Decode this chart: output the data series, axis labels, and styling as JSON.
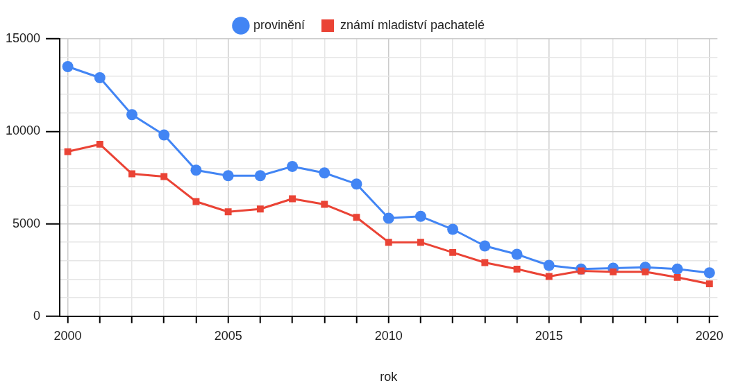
{
  "chart_data": {
    "type": "line",
    "xlabel": "rok",
    "x": [
      2000,
      2001,
      2002,
      2003,
      2004,
      2005,
      2006,
      2007,
      2008,
      2009,
      2010,
      2011,
      2012,
      2013,
      2014,
      2015,
      2016,
      2017,
      2018,
      2019,
      2020
    ],
    "series": [
      {
        "name": "provinění",
        "color": "#4285f4",
        "marker": "circle",
        "values": [
          13500,
          12900,
          10900,
          9800,
          7900,
          7600,
          7600,
          8100,
          7750,
          7150,
          5300,
          5400,
          4700,
          3800,
          3350,
          2750,
          2550,
          2600,
          2650,
          2550,
          2350
        ]
      },
      {
        "name": "známí mladiství pachatelé",
        "color": "#ea4335",
        "marker": "square",
        "values": [
          8900,
          9300,
          7700,
          7550,
          6200,
          5650,
          5800,
          6350,
          6050,
          5350,
          4000,
          4000,
          3450,
          2900,
          2550,
          2150,
          2450,
          2400,
          2400,
          2100,
          1750
        ]
      }
    ],
    "xlim": [
      1999.75,
      2020.25
    ],
    "xticks": [
      2000,
      {
        "value": 2001,
        "label": null
      },
      {
        "value": 2002,
        "label": null
      },
      {
        "value": 2003,
        "label": null
      },
      {
        "value": 2004,
        "label": null
      },
      2005,
      {
        "value": 2006,
        "label": null
      },
      {
        "value": 2007,
        "label": null
      },
      {
        "value": 2008,
        "label": null
      },
      {
        "value": 2009,
        "label": null
      },
      2010,
      {
        "value": 2011,
        "label": null
      },
      {
        "value": 2012,
        "label": null
      },
      {
        "value": 2013,
        "label": null
      },
      {
        "value": 2014,
        "label": null
      },
      2015,
      {
        "value": 2016,
        "label": null
      },
      {
        "value": 2017,
        "label": null
      },
      {
        "value": 2018,
        "label": null
      },
      {
        "value": 2019,
        "label": null
      },
      2020
    ],
    "ylim": [
      0,
      15000
    ],
    "yticks": [
      0,
      {
        "value": 1000,
        "label": null
      },
      {
        "value": 2000,
        "label": null
      },
      {
        "value": 3000,
        "label": null
      },
      {
        "value": 4000,
        "label": null
      },
      5000,
      {
        "value": 6000,
        "label": null
      },
      {
        "value": 7000,
        "label": null
      },
      {
        "value": 8000,
        "label": null
      },
      {
        "value": 9000,
        "label": null
      },
      10000,
      {
        "value": 11000,
        "label": null
      },
      {
        "value": 12000,
        "label": null
      },
      {
        "value": 13000,
        "label": null
      },
      {
        "value": 14000,
        "label": null
      },
      15000
    ],
    "grid": true,
    "legend": "top",
    "line_style": "solid"
  }
}
